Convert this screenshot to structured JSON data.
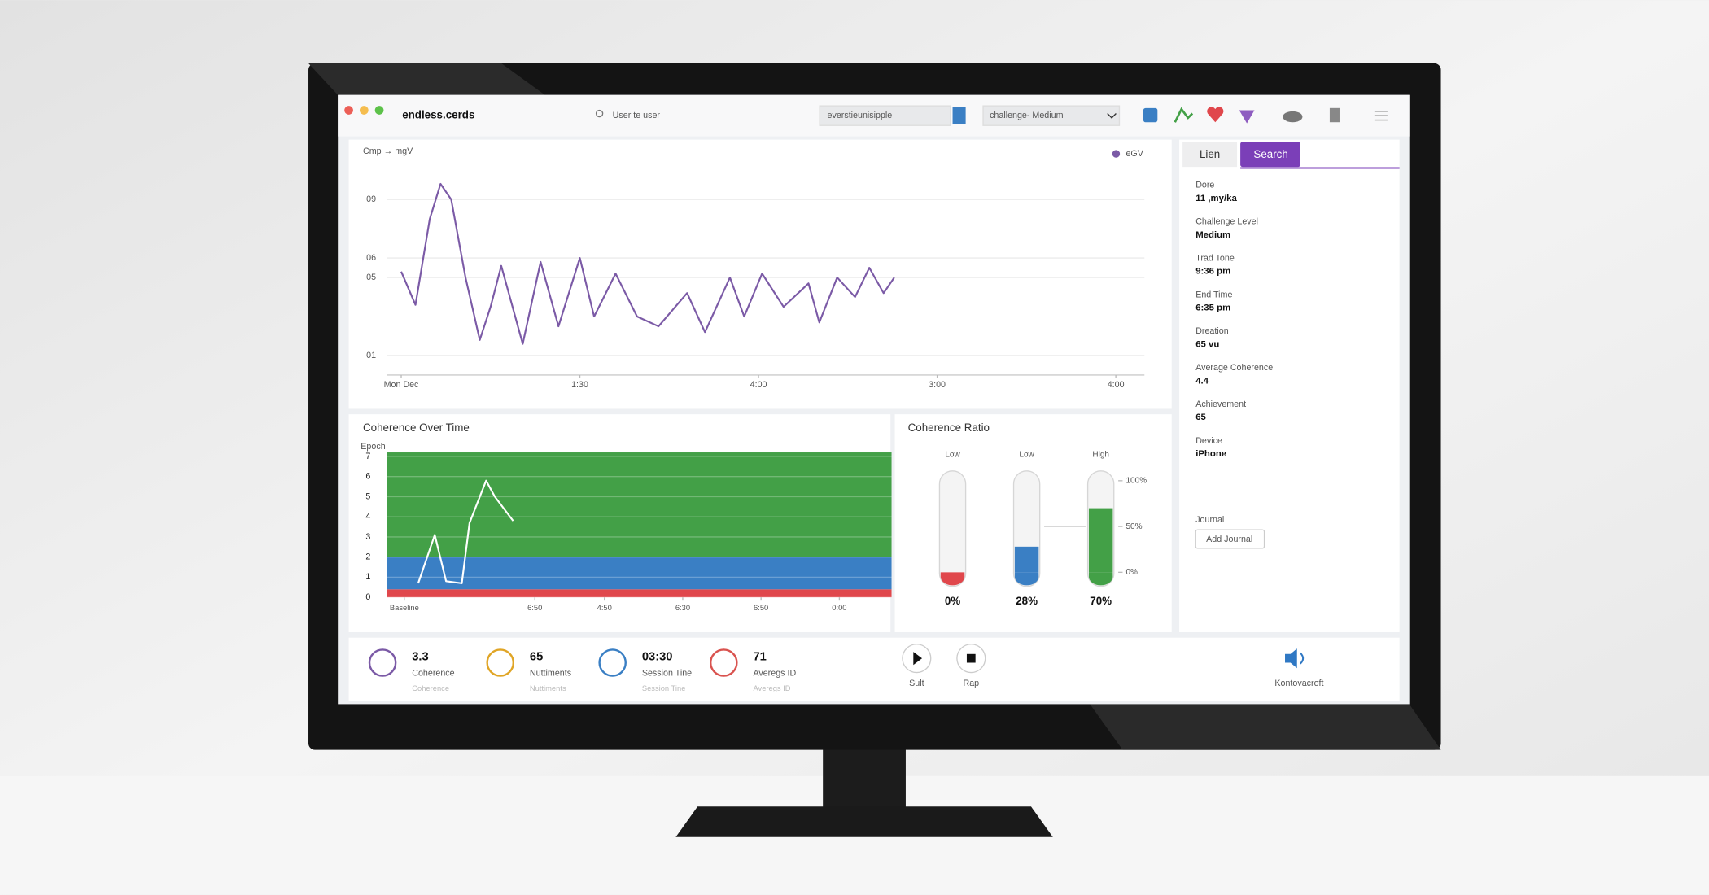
{
  "header": {
    "app_name": "endless.cerds",
    "search_placeholder": "User te user",
    "session_field": "everstieunisipple",
    "challenge_select": "challenge- Medium"
  },
  "main_chart": {
    "type": "line",
    "y_label": "Cmp → mgV",
    "x": [
      0,
      2,
      4,
      5.5,
      7,
      9,
      11,
      12.5,
      14,
      17,
      19.5,
      22,
      25,
      27,
      30,
      33,
      36,
      40,
      42.5,
      46,
      48,
      50.5,
      53.5,
      57,
      58.5,
      61,
      63.5,
      65.5,
      67.5,
      69
    ],
    "series": [
      {
        "name": "eGV",
        "color": "#7b5aa6",
        "values": [
          0.53,
          0.36,
          0.8,
          0.98,
          0.9,
          0.5,
          0.18,
          0.35,
          0.56,
          0.16,
          0.58,
          0.25,
          0.6,
          0.3,
          0.52,
          0.3,
          0.25,
          0.42,
          0.22,
          0.5,
          0.3,
          0.52,
          0.35,
          0.47,
          0.27,
          0.5,
          0.4,
          0.55,
          0.42,
          0.5
        ]
      }
    ],
    "xlim": [
      -2,
      104
    ],
    "xticks": [
      {
        "value": 0,
        "label": "Mon Dec"
      },
      {
        "value": 25,
        "label": "1:30"
      },
      {
        "value": 50,
        "label": "4:00"
      },
      {
        "value": 75,
        "label": "3:00"
      },
      {
        "value": 100,
        "label": "4:00"
      }
    ],
    "ylim": [
      0,
      1
    ],
    "yticks": [
      {
        "value": 0.9,
        "label": "09"
      },
      {
        "value": 0.6,
        "label": "06"
      },
      {
        "value": 0.5,
        "label": "05"
      },
      {
        "value": 0.1,
        "label": "01"
      }
    ],
    "grid": true
  },
  "coherence_chart": {
    "type": "line",
    "title": "Coherence Over Time",
    "y_label": "Epoch",
    "x": [
      0.16,
      0.35,
      0.48,
      0.66,
      0.75,
      0.94,
      1.04,
      1.25
    ],
    "values": [
      0.7,
      3.1,
      0.8,
      0.7,
      3.7,
      5.8,
      5.0,
      3.8
    ],
    "color": "#ffffff",
    "xlim": [
      -0.2,
      5.6
    ],
    "xticks": [
      {
        "value": 0,
        "label": "Baseline"
      },
      {
        "value": 1.5,
        "label": "6:50"
      },
      {
        "value": 2.3,
        "label": "4:50"
      },
      {
        "value": 3.2,
        "label": "6:30"
      },
      {
        "value": 4.1,
        "label": "6:50"
      },
      {
        "value": 5,
        "label": "0:00"
      }
    ],
    "ylim": [
      0,
      7.2
    ],
    "yticks": [
      0,
      1,
      2,
      3,
      4,
      5,
      6,
      7
    ],
    "bands": [
      {
        "from": 0,
        "to": 0.4,
        "color": "#e0474c"
      },
      {
        "from": 0.4,
        "to": 2,
        "color": "#3a7fc4"
      },
      {
        "from": 2,
        "to": 7.2,
        "color": "#43a047"
      }
    ]
  },
  "ratio_chart": {
    "type": "gauge",
    "title": "Coherence Ratio",
    "categories": [
      "Low",
      "Low",
      "High"
    ],
    "values": [
      0,
      28,
      70
    ],
    "value_labels": [
      "0%",
      "28%",
      "70%"
    ],
    "colors": [
      "#e0474c",
      "#3a7fc4",
      "#43a047"
    ],
    "ylim": [
      0,
      100
    ],
    "yticks": [
      {
        "value": 100,
        "label": "100%"
      },
      {
        "value": 50,
        "label": "50%"
      },
      {
        "value": 0,
        "label": "0%"
      }
    ]
  },
  "side_panel": {
    "tabs": [
      "Lien",
      "Search"
    ],
    "fields": [
      {
        "label": "Dore",
        "value": "11 ,my/ka"
      },
      {
        "label": "Challenge Level",
        "value": "Medium"
      },
      {
        "label": "Trad Tone",
        "value": "9:36 pm"
      },
      {
        "label": "End Time",
        "value": "6:35 pm"
      },
      {
        "label": "Dreation",
        "value": "65 vu"
      },
      {
        "label": "Average Coherence",
        "value": "4.4"
      },
      {
        "label": "Achievement",
        "value": "65"
      },
      {
        "label": "Device",
        "value": "iPhone"
      }
    ],
    "journal_label": "Journal",
    "journal_button": "Add Journal"
  },
  "stats": [
    {
      "value": "3.3",
      "label": "Coherence",
      "caption": "Coherence"
    },
    {
      "value": "65",
      "label": "Nuttiments",
      "caption": "Nuttiments"
    },
    {
      "value": "03:30",
      "label": "Session Tine",
      "caption": "Session Tine"
    },
    {
      "value": "71",
      "label": "Averegs ID",
      "caption": "Averegs ID"
    }
  ],
  "controls": [
    "Sult",
    "Rap"
  ],
  "sound_label": "Kontovacroft"
}
